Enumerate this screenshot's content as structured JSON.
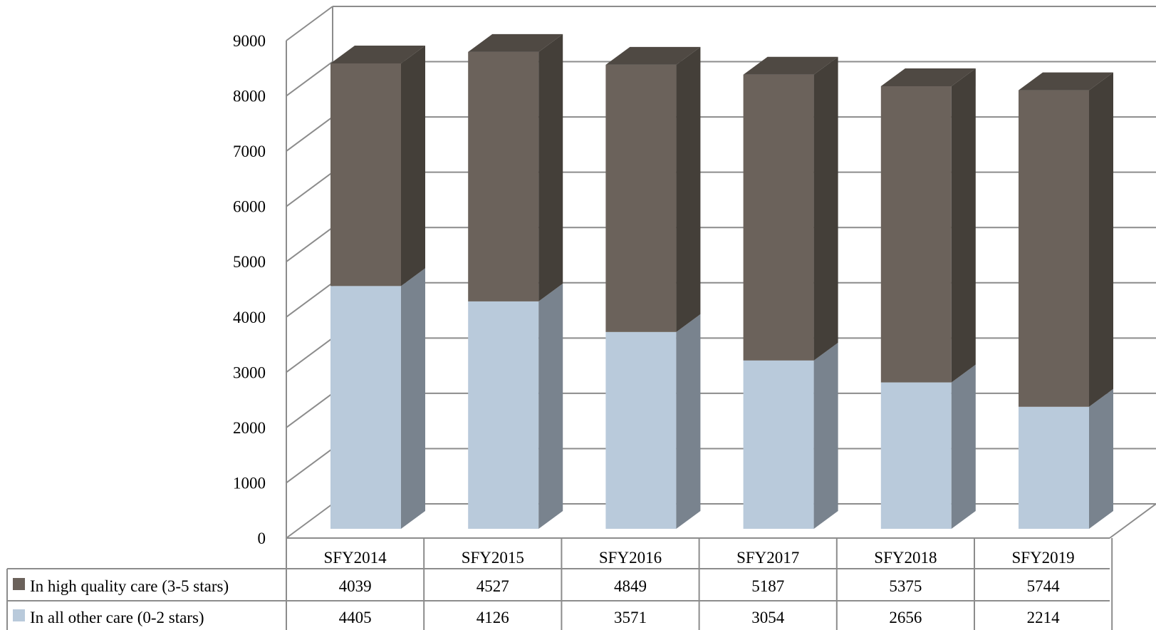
{
  "chart_data": {
    "type": "bar",
    "stacked": true,
    "three_d": true,
    "categories": [
      "SFY2014",
      "SFY2015",
      "SFY2016",
      "SFY2017",
      "SFY2018",
      "SFY2019"
    ],
    "series": [
      {
        "name": "In high quality care (3-5 stars)",
        "values": [
          4039,
          4527,
          4849,
          5187,
          5375,
          5744
        ],
        "colors": {
          "front": "#6b625b",
          "side": "#443f39",
          "top": "#4f4943"
        }
      },
      {
        "name": "In all other care (0-2 stars)",
        "values": [
          4405,
          4126,
          3571,
          3054,
          2656,
          2214
        ],
        "colors": {
          "front": "#b9cadb",
          "side": "#79838e",
          "top": "#8c9bab"
        }
      }
    ],
    "ylim": [
      0,
      9000
    ],
    "yticks": [
      "0",
      "1000",
      "2000",
      "3000",
      "4000",
      "5000",
      "6000",
      "7000",
      "8000",
      "9000"
    ],
    "grid": true,
    "legend": "data-table",
    "data_table": true,
    "grid_color": "#8c8c8c"
  }
}
